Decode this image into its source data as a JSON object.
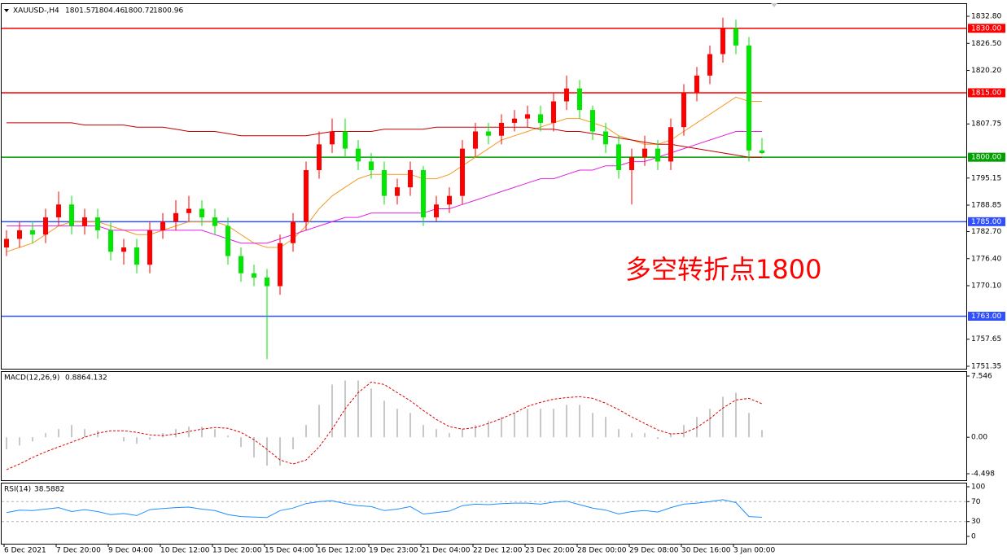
{
  "chart_data": [
    {
      "type": "candlestick",
      "title": "XAUUSD-,H4",
      "annotation": "多空转折点1800",
      "annotation_color": "#ff0000",
      "up_color": "#ff0000",
      "down_color": "#00e600",
      "categories": [
        "6 Dec 2021",
        null,
        null,
        null,
        "7 Dec 20:00",
        null,
        null,
        null,
        "9 Dec 04:00",
        null,
        null,
        null,
        "10 Dec 12:00",
        null,
        null,
        null,
        "13 Dec 20:00",
        null,
        null,
        null,
        "15 Dec 04:00",
        null,
        null,
        null,
        "16 Dec 12:00",
        null,
        null,
        null,
        "19 Dec 23:00",
        null,
        null,
        null,
        "21 Dec 04:00",
        null,
        null,
        null,
        "22 Dec 12:00",
        null,
        null,
        null,
        "23 Dec 20:00",
        null,
        null,
        null,
        "28 Dec 00:00",
        null,
        null,
        null,
        "29 Dec 08:00",
        null,
        null,
        null,
        "30 Dec 16:00",
        null,
        null,
        null,
        "3 Jan 00:00",
        null,
        null
      ],
      "open": [
        1779,
        1781,
        1783,
        1782,
        1786,
        1789,
        1784,
        1786,
        1783,
        1778,
        1779,
        1775,
        1783,
        1785,
        1787,
        1788,
        1786,
        1784,
        1777,
        1773,
        1772,
        1770,
        1780,
        1785,
        1797,
        1803,
        1806,
        1802,
        1799,
        1797,
        1791,
        1793,
        1797,
        1786,
        1789,
        1791,
        1802,
        1806,
        1805,
        1808,
        1809,
        1810,
        1808,
        1813,
        1816,
        1811,
        1806,
        1803,
        1797,
        1800,
        1802,
        1799,
        1807,
        1815,
        1819,
        1824,
        1830,
        1826,
        1801.57
      ],
      "high": [
        1783,
        1785,
        1785,
        1788,
        1792,
        1791,
        1788,
        1788,
        1785,
        1781,
        1781,
        1785,
        1787,
        1790,
        1791,
        1790,
        1788,
        1786,
        1779,
        1775,
        1774,
        1782,
        1787,
        1799,
        1806,
        1809,
        1809,
        1804,
        1801,
        1799,
        1795,
        1799,
        1798,
        1791,
        1793,
        1804,
        1808,
        1808,
        1810,
        1811,
        1812,
        1812,
        1815,
        1819,
        1818,
        1812,
        1808,
        1805,
        1802,
        1805,
        1804,
        1809,
        1817,
        1821,
        1826,
        1832.5,
        1832,
        1828,
        1804.46
      ],
      "low": [
        1777,
        1779,
        1780,
        1780,
        1784,
        1782,
        1782,
        1781,
        1776,
        1775,
        1773,
        1773,
        1781,
        1783,
        1785,
        1784,
        1782,
        1775,
        1771,
        1770,
        1753,
        1768,
        1778,
        1783,
        1795,
        1801,
        1800,
        1797,
        1795,
        1789,
        1789,
        1791,
        1784,
        1785,
        1787,
        1789,
        1800,
        1803,
        1803,
        1806,
        1807,
        1806,
        1806,
        1811,
        1809,
        1804,
        1801,
        1795,
        1789,
        1798,
        1797,
        1797,
        1805,
        1813,
        1817,
        1822,
        1824,
        1799,
        1800.72
      ],
      "close": [
        1781,
        1783,
        1782,
        1786,
        1789,
        1784,
        1786,
        1783,
        1778,
        1779,
        1775,
        1783,
        1785,
        1787,
        1788,
        1786,
        1784,
        1777,
        1773,
        1772,
        1770,
        1780,
        1785,
        1797,
        1803,
        1806,
        1802,
        1799,
        1797,
        1791,
        1793,
        1797,
        1786,
        1789,
        1791,
        1802,
        1806,
        1805,
        1808,
        1809,
        1810,
        1808,
        1813,
        1816,
        1811,
        1806,
        1803,
        1797,
        1800,
        1802,
        1799,
        1807,
        1815,
        1819,
        1824,
        1830,
        1826,
        1801.57,
        1800.96
      ],
      "series": [
        {
          "color": "#f59a23",
          "values": [
            1778,
            1779,
            1780,
            1782,
            1784,
            1785,
            1785,
            1785,
            1784,
            1783,
            1782,
            1782,
            1783,
            1784,
            1785,
            1785,
            1785,
            1784,
            1782,
            1780,
            1779,
            1779,
            1781,
            1784,
            1788,
            1791,
            1793,
            1795,
            1796,
            1796,
            1796,
            1796,
            1795,
            1795,
            1796,
            1798,
            1800,
            1802,
            1804,
            1805,
            1806,
            1807,
            1808,
            1809,
            1809,
            1808,
            1807,
            1805,
            1804,
            1803,
            1803,
            1804,
            1806,
            1808,
            1810,
            1812,
            1814,
            1813,
            1813
          ]
        },
        {
          "color": "#e020e0",
          "values": [
            1784,
            1784,
            1784,
            1784,
            1784,
            1784,
            1784,
            1784,
            1783,
            1783,
            1783,
            1783,
            1783,
            1783,
            1783,
            1783,
            1782,
            1781,
            1780,
            1780,
            1780,
            1781,
            1782,
            1783,
            1784,
            1785,
            1786,
            1786,
            1787,
            1787,
            1787,
            1787,
            1787,
            1788,
            1788,
            1789,
            1790,
            1791,
            1792,
            1793,
            1794,
            1795,
            1795,
            1796,
            1797,
            1797,
            1798,
            1798,
            1799,
            1799,
            1800,
            1801,
            1802,
            1803,
            1804,
            1805,
            1806,
            1806,
            1806
          ]
        },
        {
          "color": "#c00000",
          "values": [
            1808,
            1808,
            1808,
            1808,
            1808,
            1808,
            1807.5,
            1807.5,
            1807.5,
            1807.5,
            1807,
            1807,
            1807,
            1806.5,
            1806,
            1806,
            1806,
            1805.5,
            1805,
            1805,
            1805,
            1805,
            1805,
            1805,
            1805.5,
            1806,
            1806,
            1806,
            1806,
            1806.5,
            1806.5,
            1806.5,
            1806.5,
            1807,
            1807,
            1807,
            1807,
            1807,
            1807,
            1807,
            1807,
            1806.5,
            1806.5,
            1806,
            1806,
            1805.5,
            1805,
            1804.5,
            1804,
            1803.5,
            1803,
            1803,
            1802.5,
            1802,
            1801.5,
            1801,
            1800.5,
            1800,
            1800
          ]
        }
      ],
      "hlines": [
        {
          "value": 1830,
          "label": "1830.00",
          "color": "#ff0000"
        },
        {
          "value": 1815,
          "label": "1815.00",
          "color": "#ff0000"
        },
        {
          "value": 1800,
          "label": "1800.00",
          "color": "#00a000"
        },
        {
          "value": 1785,
          "label": "1785.00",
          "color": "#3050ff"
        },
        {
          "value": 1763,
          "label": "1763.00",
          "color": "#3050ff"
        }
      ],
      "ylim": [
        1751.35,
        1832.8
      ],
      "yticks": [
        {
          "value": 1832.8,
          "label": "1832.80"
        },
        {
          "value": 1826.5,
          "label": "1826.50"
        },
        {
          "value": 1820.2,
          "label": "1820.20"
        },
        1807.75,
        1795.15,
        1788.85,
        {
          "value": 1782.7,
          "label": "1782.70"
        },
        {
          "value": 1776.4,
          "label": "1776.40"
        },
        {
          "value": 1770.1,
          "label": "1770.10"
        },
        1757.65,
        1751.35
      ]
    },
    {
      "type": "macd",
      "title": "MACD(12,26,9)",
      "hist_color": "#b4b4b4",
      "signal_color": "#e00000",
      "histogram": [
        -1.5,
        -1,
        -0.5,
        0.5,
        1,
        1.5,
        1,
        0.8,
        0,
        -0.5,
        -0.8,
        -0.3,
        0.5,
        1,
        1.3,
        1.3,
        1,
        0.2,
        -1.2,
        -2.5,
        -3.5,
        -3.5,
        -1.5,
        1.5,
        4,
        6.5,
        7,
        7,
        6,
        4.5,
        3.5,
        3,
        1.5,
        1,
        0.5,
        1,
        1.5,
        2,
        2.5,
        3,
        3.5,
        3.5,
        3.5,
        4,
        4,
        3,
        2.5,
        1,
        0.5,
        0.5,
        -0.2,
        0.5,
        1.5,
        2.5,
        3.5,
        5,
        5.5,
        3,
        0.886
      ],
      "signal": [
        -4,
        -3.3,
        -2.5,
        -1.8,
        -1.2,
        -0.6,
        0,
        0.5,
        0.8,
        0.8,
        0.6,
        0.3,
        0.2,
        0.4,
        0.7,
        1,
        1.2,
        1.1,
        0.6,
        -0.3,
        -1.5,
        -2.8,
        -3.3,
        -2.8,
        -1.2,
        1,
        3.5,
        5.5,
        6.8,
        6.5,
        5.5,
        4.5,
        3.3,
        2.2,
        1.3,
        1,
        1.2,
        1.7,
        2.3,
        3,
        3.8,
        4.3,
        4.7,
        4.9,
        5,
        4.8,
        4.2,
        3.4,
        2.5,
        1.7,
        0.9,
        0.4,
        0.5,
        1.2,
        2.3,
        3.6,
        4.6,
        4.8,
        4.132
      ],
      "ylim": [
        -4.498,
        7.546
      ],
      "yticks": [
        7.546,
        {
          "value": 0,
          "label": "0.00"
        },
        -4.498
      ]
    },
    {
      "type": "rsi",
      "title": "RSI(14)",
      "color": "#1e8fff",
      "level_lines": true,
      "values": [
        48,
        53,
        52,
        55,
        58,
        50,
        54,
        50,
        44,
        46,
        42,
        54,
        56,
        58,
        59,
        55,
        52,
        44,
        40,
        39,
        38,
        52,
        57,
        66,
        70,
        72,
        66,
        62,
        60,
        52,
        55,
        60,
        45,
        48,
        51,
        62,
        65,
        64,
        66,
        67,
        67,
        65,
        69,
        71,
        64,
        57,
        53,
        45,
        50,
        52,
        49,
        58,
        65,
        67,
        70,
        74,
        68,
        40,
        38.5882
      ],
      "ylim": [
        0,
        100
      ],
      "yticks": [
        100,
        70,
        30,
        0
      ]
    }
  ]
}
